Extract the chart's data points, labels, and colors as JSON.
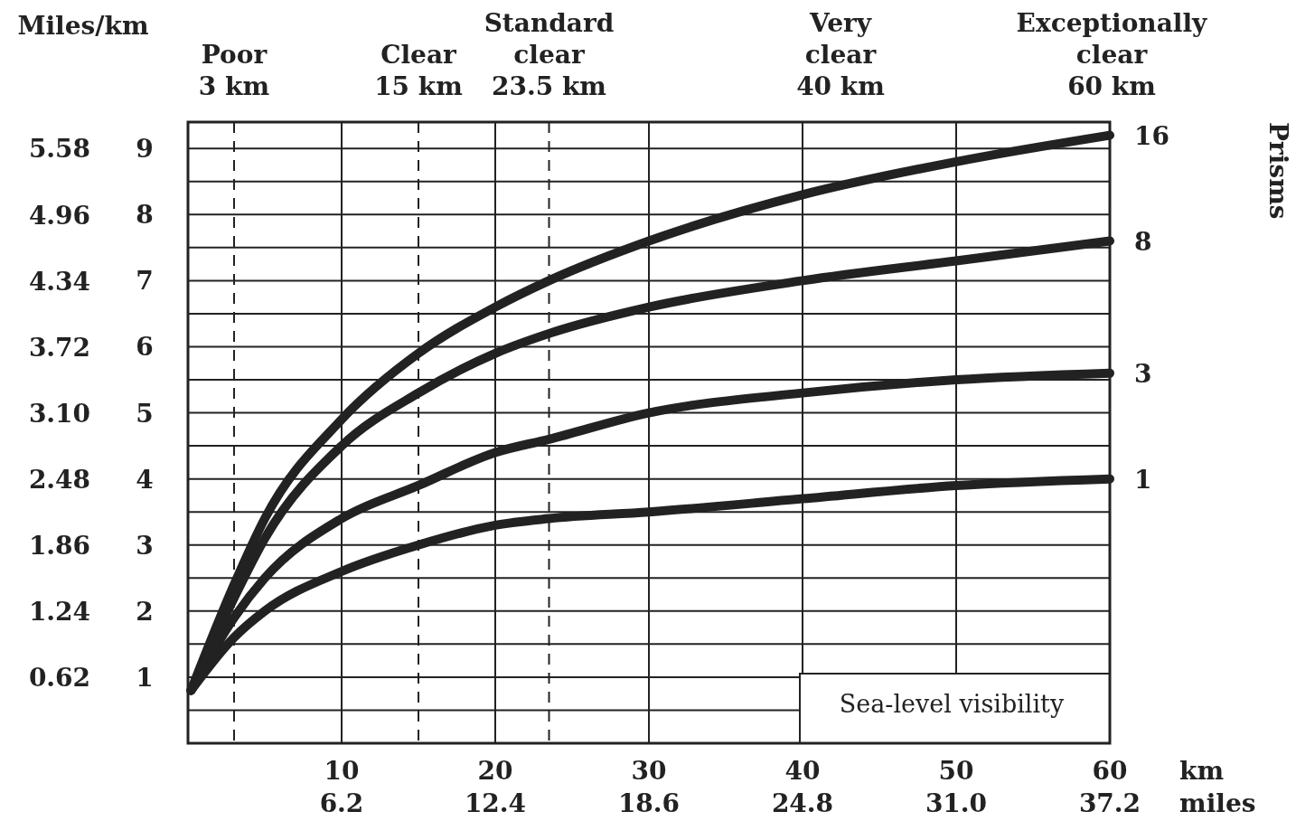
{
  "chart_data": {
    "type": "line",
    "xlabel": "km",
    "x2label": "miles",
    "legend_title": "Prisms",
    "legend": "right",
    "grid": true,
    "marker": "none",
    "line_style": "solid",
    "x": [
      0.2,
      3,
      5,
      10,
      15,
      20,
      23.5,
      30,
      40,
      50,
      60
    ],
    "xlim": [
      0,
      60
    ],
    "xticks": [
      10,
      20,
      30,
      40,
      50,
      60
    ],
    "x2lim": [
      0,
      37.2
    ],
    "x2ticks": [
      6.2,
      12.4,
      18.6,
      24.8,
      {
        "value": 31,
        "label": "31.0"
      },
      37.2
    ],
    "ylim": [
      0,
      9.4
    ],
    "yticks": [
      {
        "value": 0.5,
        "label": null
      },
      1,
      {
        "value": 1.5,
        "label": null
      },
      2,
      {
        "value": 2.5,
        "label": null
      },
      3,
      {
        "value": 3.5,
        "label": null
      },
      4,
      {
        "value": 4.5,
        "label": null
      },
      5,
      {
        "value": 5.5,
        "label": null
      },
      6,
      {
        "value": 6.5,
        "label": null
      },
      7,
      {
        "value": 7.5,
        "label": null
      },
      8,
      {
        "value": 8.5,
        "label": null
      },
      9
    ],
    "y2lim": [
      0,
      5.83
    ],
    "y2ticks": [
      0.62,
      1.24,
      1.86,
      2.48,
      {
        "value": 3.1,
        "label": "3.10"
      },
      3.72,
      4.34,
      4.96,
      5.58
    ],
    "series": [
      {
        "name": "16",
        "color": "#222222",
        "values": [
          0.8,
          2.4,
          3.4,
          4.9,
          5.9,
          6.6,
          7.0,
          7.6,
          8.3,
          8.8,
          9.2
        ]
      },
      {
        "name": "8",
        "color": "#222222",
        "values": [
          0.8,
          2.2,
          3.1,
          4.5,
          5.3,
          5.9,
          6.2,
          6.6,
          7.0,
          7.3,
          7.6
        ]
      },
      {
        "name": "3",
        "color": "#222222",
        "values": [
          0.8,
          1.9,
          2.5,
          3.4,
          3.9,
          4.4,
          4.6,
          5.0,
          5.3,
          5.5,
          5.6
        ]
      },
      {
        "name": "1",
        "color": "#222222",
        "values": [
          0.8,
          1.6,
          2.0,
          2.6,
          3.0,
          3.3,
          3.4,
          3.5,
          3.7,
          3.9,
          4.0
        ]
      }
    ],
    "ref_lines": [
      {
        "axis": "x",
        "value": 3,
        "line_style": "dashed",
        "label": "Poor\n3 km"
      },
      {
        "axis": "x",
        "value": 15,
        "line_style": "dashed",
        "label": "Clear\n15 km"
      },
      {
        "axis": "x",
        "value": 23.5,
        "line_style": "dashed",
        "label": "Standard\nclear\n23.5 km"
      }
    ],
    "annotations": [
      "Miles/km",
      "Very\nclear\n40 km",
      "Exceptionally\nclear\n60 km",
      "Sea-level visibility"
    ]
  }
}
